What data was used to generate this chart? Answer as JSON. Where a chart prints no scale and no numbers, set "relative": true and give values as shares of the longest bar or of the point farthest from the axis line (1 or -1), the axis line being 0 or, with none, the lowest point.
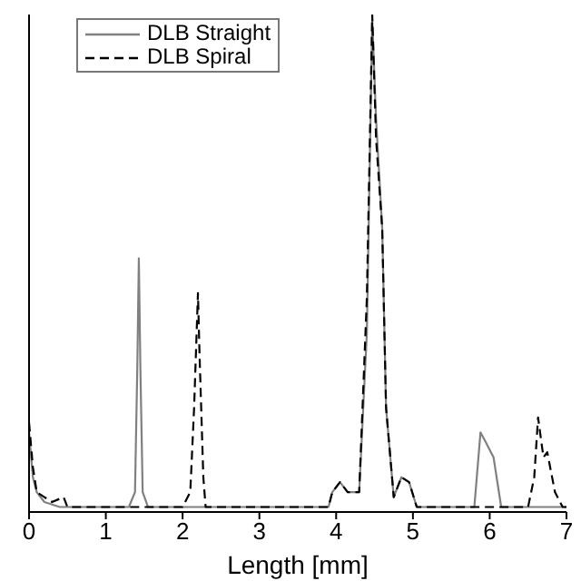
{
  "chart_data": {
    "type": "line",
    "xlabel": "Length [mm]",
    "xlim": [
      0,
      7
    ],
    "xticks": [
      0,
      1,
      2,
      3,
      4,
      5,
      6,
      7
    ],
    "relative": true,
    "grid": false,
    "legend": "top left",
    "marker": "none",
    "series": [
      {
        "name": "DLB Straight",
        "color": "#808080",
        "line_style": "solid",
        "x": [
          0,
          0.05,
          0.1,
          0.2,
          0.4,
          0.6,
          1.0,
          1.3,
          1.38,
          1.41,
          1.43,
          1.45,
          1.48,
          1.55,
          2.0,
          3.0,
          3.9,
          3.95,
          4.05,
          4.15,
          4.3,
          4.4,
          4.47,
          4.52,
          4.6,
          4.65,
          4.75,
          4.85,
          4.95,
          5.05,
          5.5,
          5.8,
          5.88,
          5.95,
          6.05,
          6.15,
          6.4,
          7.0
        ],
        "values": [
          0.16,
          0.07,
          0.04,
          0.02,
          0.01,
          0.01,
          0.01,
          0.01,
          0.04,
          0.29,
          0.51,
          0.29,
          0.04,
          0.01,
          0.01,
          0.01,
          0.01,
          0.04,
          0.06,
          0.04,
          0.04,
          0.36,
          0.99,
          0.79,
          0.57,
          0.21,
          0.03,
          0.07,
          0.06,
          0.01,
          0.01,
          0.01,
          0.16,
          0.14,
          0.11,
          0.01,
          0.01,
          0.01
        ]
      },
      {
        "name": "DLB Spiral",
        "color": "#000000",
        "line_style": "dashed",
        "x": [
          0,
          0.05,
          0.1,
          0.2,
          0.3,
          0.45,
          0.5,
          1.0,
          2.0,
          2.1,
          2.15,
          2.2,
          2.22,
          2.27,
          2.3,
          3.0,
          3.9,
          3.95,
          4.05,
          4.15,
          4.3,
          4.4,
          4.47,
          4.52,
          4.6,
          4.65,
          4.75,
          4.85,
          4.95,
          5.05,
          6.5,
          6.58,
          6.63,
          6.7,
          6.75,
          6.85,
          6.95,
          7.0
        ],
        "values": [
          0.18,
          0.09,
          0.04,
          0.03,
          0.02,
          0.03,
          0.01,
          0.01,
          0.01,
          0.04,
          0.21,
          0.44,
          0.32,
          0.07,
          0.01,
          0.01,
          0.01,
          0.04,
          0.06,
          0.04,
          0.04,
          0.43,
          1,
          0.75,
          0.57,
          0.21,
          0.03,
          0.07,
          0.06,
          0.01,
          0.01,
          0.07,
          0.19,
          0.11,
          0.12,
          0.04,
          0.01,
          0.01
        ]
      }
    ]
  }
}
